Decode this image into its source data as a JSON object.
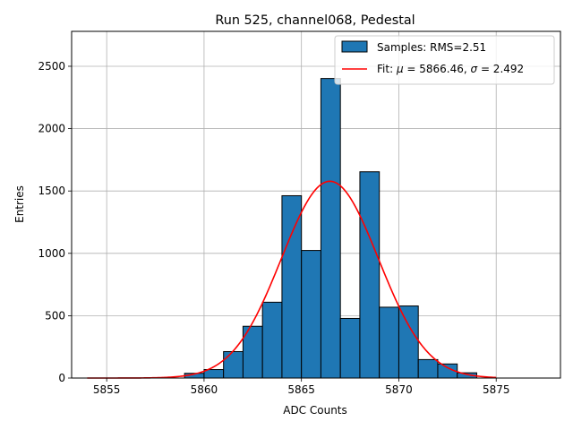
{
  "chart_data": {
    "type": "bar",
    "title": "Run 525, channel068, Pedestal",
    "xlabel": "ADC Counts",
    "ylabel": "Entries",
    "xlim": [
      5853.2,
      5878.3
    ],
    "ylim": [
      0,
      2780
    ],
    "xticks": [
      5855,
      5860,
      5865,
      5870,
      5875
    ],
    "yticks": [
      0,
      500,
      1000,
      1500,
      2000,
      2500
    ],
    "grid": true,
    "legend_position": "top-right",
    "histogram": {
      "name": "Samples: RMS=2.51",
      "color": "#1f77b4",
      "bin_edges": [
        5859.0,
        5860.0,
        5861.0,
        5862.0,
        5863.0,
        5864.0,
        5865.0,
        5866.0,
        5867.0,
        5868.0,
        5869.0,
        5870.0,
        5871.0,
        5872.0,
        5873.0,
        5874.0
      ],
      "counts": [
        38,
        68,
        212,
        415,
        608,
        1462,
        1023,
        2402,
        478,
        1654,
        568,
        578,
        148,
        113,
        42
      ]
    },
    "fit": {
      "label_prefix": "Fit: ",
      "mu_symbol": "μ",
      "sigma_symbol": "σ",
      "mu_text": " = 5866.46, ",
      "sigma_text": " = 2.492",
      "color": "#ff0000",
      "mu": 5866.46,
      "sigma": 2.492,
      "amplitude": 1578,
      "x_range": [
        5854,
        5875
      ]
    }
  }
}
